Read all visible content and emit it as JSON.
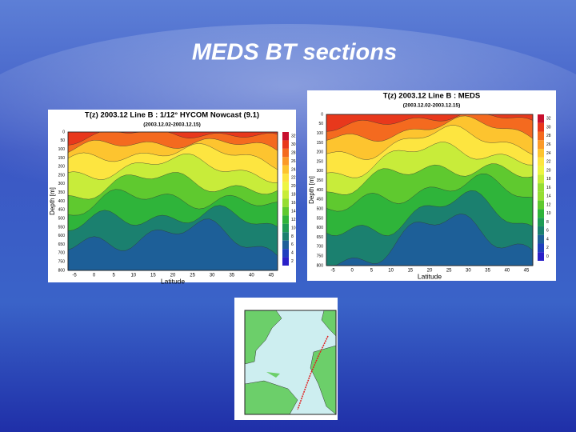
{
  "title": "MEDS BT sections",
  "panels": [
    {
      "title": "T(z) 2003.12 Line B : 1/12° HYCOM Nowcast (9.1)",
      "subtitle": "(2003.12.02-2003.12.15)",
      "ylabel": "Depth [m]",
      "xlabel": "Latitude",
      "xticks": [
        -5,
        0,
        5,
        10,
        15,
        20,
        25,
        30,
        35,
        40,
        45
      ],
      "yticks": [
        0,
        50,
        100,
        150,
        200,
        250,
        300,
        350,
        400,
        450,
        500,
        550,
        600,
        650,
        700,
        750,
        800
      ],
      "colorbar": [
        32,
        30,
        28,
        26,
        24,
        22,
        20,
        18,
        16,
        14,
        12,
        10,
        8,
        6,
        4,
        2
      ]
    },
    {
      "title": "T(z) 2003.12 Line B : MEDS",
      "subtitle": "(2003.12.02-2003.12.15)",
      "ylabel": "Depth [m]",
      "xlabel": "Latitude",
      "xticks": [
        -5,
        0,
        5,
        10,
        15,
        20,
        25,
        30,
        35,
        40,
        45
      ],
      "yticks": [
        0,
        50,
        100,
        150,
        200,
        250,
        300,
        350,
        400,
        450,
        500,
        550,
        600,
        650,
        700,
        750,
        800
      ],
      "colorbar": [
        32,
        30,
        28,
        26,
        24,
        22,
        20,
        18,
        16,
        14,
        12,
        10,
        8,
        6,
        4,
        2,
        0
      ]
    }
  ]
}
